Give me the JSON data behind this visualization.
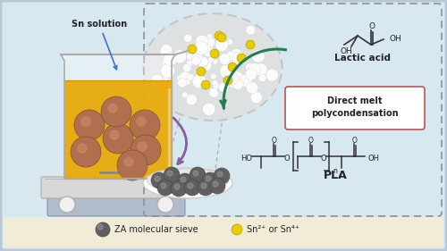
{
  "bg_outer": "#b8c8d8",
  "bg_main": "#d8e8f0",
  "bg_right": "#d0e8e8",
  "legend_bg": "#f0ecd8",
  "beaker_liquid": "#e8a800",
  "sphere_color": "#b07050",
  "sphere_highlight": "#d09070",
  "dark_sphere": "#606060",
  "dark_sphere_highlight": "#909090",
  "ellipse_bg": "#e8e8e8",
  "ellipse_edge": "#c0c0c0",
  "white_dot": "#ffffff",
  "yellow_dot": "#e8cc00",
  "arrow_purple": "#8060a0",
  "arrow_blue": "#4070cc",
  "arrow_green": "#208050",
  "dashed_border": "#909090",
  "box_border": "#c05050",
  "text_color": "#222222",
  "bond_color": "#333333",
  "plate_top": "#d8d8d8",
  "plate_base": "#b0bccc",
  "plate_knob": "#f0f0f0",
  "sn_solution_label": "Sn solution",
  "lactic_acid_label": "Lactic acid",
  "direct_melt_line1": "Direct melt",
  "direct_melt_line2": "polycondensation",
  "pla_label": "PLA",
  "legend_za": "ZA molecular sieve",
  "legend_sn": "Sn²⁺ or Sn⁴⁺"
}
